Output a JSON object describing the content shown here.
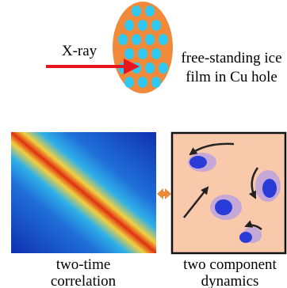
{
  "sample": {
    "beam_label": "X-ray",
    "description": [
      "free-standing ice",
      "film in Cu hole"
    ]
  },
  "panels": [
    {
      "caption": [
        "two-time",
        "correlation"
      ]
    },
    {
      "caption": [
        "two component",
        "dynamics"
      ]
    }
  ]
}
